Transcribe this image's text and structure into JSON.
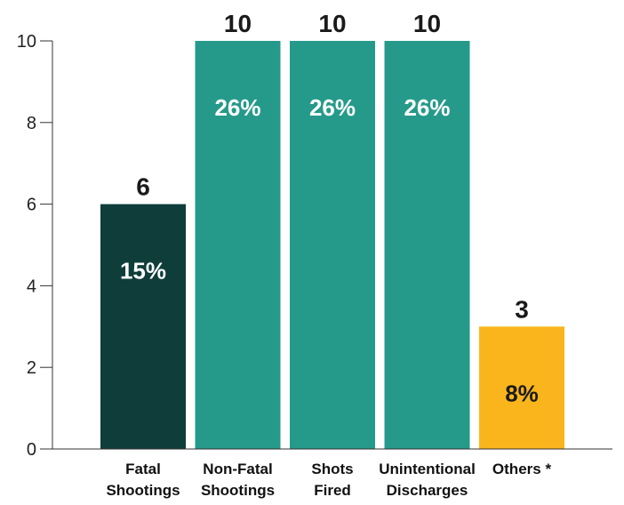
{
  "chart_data": {
    "type": "bar",
    "categories": [
      [
        "Fatal",
        "Shootings"
      ],
      [
        "Non-Fatal",
        "Shootings"
      ],
      [
        "Shots",
        "Fired"
      ],
      [
        "Unintentional",
        "Discharges"
      ],
      [
        "Others *"
      ]
    ],
    "values": [
      6,
      10,
      10,
      10,
      3
    ],
    "percent_labels": [
      "15%",
      "26%",
      "26%",
      "26%",
      "8%"
    ],
    "bar_colors": [
      "#0f3d3a",
      "#259a8a",
      "#259a8a",
      "#259a8a",
      "#f9b51b"
    ],
    "percent_label_colors": [
      "#ffffff",
      "#ffffff",
      "#ffffff",
      "#ffffff",
      "#1a1a1a"
    ],
    "ylim": [
      0,
      10
    ],
    "yticks": [
      0,
      2,
      4,
      6,
      8,
      10
    ],
    "grid": false,
    "legend": "none"
  }
}
